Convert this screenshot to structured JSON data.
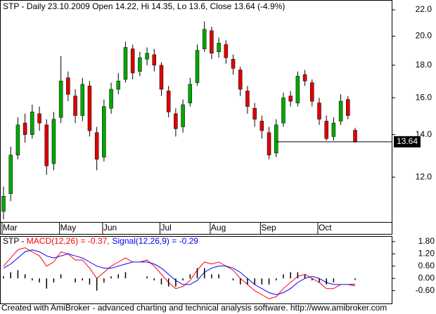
{
  "chart_data": [
    {
      "type": "candlestick",
      "title": "STP - Daily 23.10.2009 Open 14.22, Hi 14.35, Lo 13.6, Close 13.64 (-4.9%)",
      "categories": [
        "Mar",
        null,
        null,
        null,
        null,
        null,
        null,
        null,
        "May",
        null,
        null,
        null,
        null,
        null,
        "Jun",
        null,
        null,
        null,
        null,
        null,
        null,
        null,
        "Jul",
        null,
        null,
        null,
        null,
        null,
        null,
        "Aug",
        null,
        null,
        null,
        null,
        null,
        null,
        "Sep",
        null,
        null,
        null,
        null,
        null,
        null,
        null,
        "Oct",
        null,
        null,
        null,
        null,
        null
      ],
      "open": [
        10.6,
        11.3,
        13.0,
        14.6,
        14.0,
        15.1,
        14.5,
        12.6,
        14.9,
        17.2,
        16.1,
        15.0,
        16.7,
        14.1,
        12.9,
        15.4,
        16.5,
        17.1,
        19.1,
        17.6,
        18.4,
        18.7,
        18.0,
        16.4,
        15.1,
        14.4,
        15.7,
        16.9,
        19.1,
        20.4,
        18.9,
        19.4,
        18.4,
        17.7,
        16.4,
        15.4,
        14.7,
        14.1,
        13.1,
        14.6,
        16.1,
        15.7,
        17.4,
        16.9,
        15.7,
        14.7,
        13.9,
        14.7,
        15.9,
        14.22
      ],
      "high": [
        11.6,
        13.4,
        14.9,
        15.1,
        15.6,
        15.5,
        14.8,
        15.2,
        18.6,
        17.6,
        16.5,
        17.2,
        17.0,
        14.4,
        15.9,
        16.9,
        17.5,
        19.6,
        19.4,
        18.9,
        19.2,
        19.1,
        18.2,
        16.7,
        15.4,
        15.9,
        17.2,
        19.4,
        21.1,
        20.7,
        19.9,
        19.7,
        18.7,
        17.9,
        16.7,
        15.7,
        15.0,
        14.4,
        14.8,
        16.3,
        16.4,
        17.6,
        17.7,
        17.1,
        16.0,
        15.0,
        14.9,
        16.2,
        16.1,
        14.35
      ],
      "low": [
        10.3,
        11.0,
        12.8,
        13.6,
        13.8,
        14.2,
        12.1,
        12.3,
        14.6,
        15.8,
        14.6,
        14.7,
        13.9,
        12.3,
        12.7,
        15.1,
        16.2,
        16.9,
        17.1,
        17.3,
        18.0,
        17.6,
        16.1,
        14.9,
        13.9,
        14.1,
        15.5,
        16.7,
        18.9,
        18.4,
        18.5,
        18.1,
        17.4,
        16.1,
        15.1,
        14.4,
        13.8,
        12.8,
        12.9,
        14.4,
        15.5,
        15.5,
        16.7,
        15.5,
        14.5,
        13.7,
        13.7,
        14.5,
        14.8,
        13.6
      ],
      "close": [
        11.2,
        13.0,
        14.5,
        14.0,
        15.2,
        14.6,
        12.5,
        14.8,
        17.0,
        16.2,
        15.0,
        16.8,
        14.2,
        12.8,
        15.5,
        16.5,
        17.0,
        19.2,
        17.5,
        18.5,
        18.8,
        18.0,
        16.5,
        15.2,
        14.3,
        15.6,
        16.8,
        19.0,
        20.5,
        18.8,
        19.5,
        18.5,
        17.8,
        16.5,
        15.5,
        14.8,
        14.2,
        13.0,
        14.5,
        16.0,
        15.8,
        17.3,
        17.0,
        15.8,
        14.8,
        13.8,
        14.6,
        15.8,
        15.0,
        13.64
      ],
      "up_color": "#00a800",
      "down_color": "#e00000",
      "ylim": [
        10.2,
        22.8
      ],
      "log_scale": true,
      "last_price_line": true,
      "yticks": [
        {
          "value": 12,
          "label": "12.0"
        },
        {
          "value": 14,
          "label": "14.0"
        },
        {
          "value": 16,
          "label": "16.0"
        },
        {
          "value": 18,
          "label": "18.0"
        },
        {
          "value": 20,
          "label": "20.0"
        },
        {
          "value": 22,
          "label": "22.0"
        }
      ]
    },
    {
      "type": "macd",
      "prefix": "STP - ",
      "series": [
        {
          "name": "MACD(12,26) = -0.37,",
          "color": "#ff0000",
          "kind": "line",
          "values": [
            0.6,
            1.0,
            1.4,
            1.5,
            1.3,
            1.1,
            0.6,
            0.8,
            1.3,
            1.2,
            0.9,
            0.9,
            0.5,
            0.0,
            0.3,
            0.6,
            0.8,
            1.0,
            0.8,
            0.8,
            0.9,
            0.6,
            0.2,
            -0.2,
            -0.5,
            -0.4,
            -0.1,
            0.4,
            0.8,
            0.7,
            0.8,
            0.6,
            0.4,
            0.0,
            -0.3,
            -0.6,
            -0.8,
            -1.0,
            -0.9,
            -0.5,
            -0.2,
            0.1,
            0.2,
            0.0,
            -0.2,
            -0.5,
            -0.5,
            -0.3,
            -0.3,
            -0.37
          ]
        },
        {
          "name": "Signal(12,26,9) = -0.29",
          "color": "#0000ff",
          "kind": "line",
          "values": [
            0.5,
            0.7,
            1.0,
            1.3,
            1.4,
            1.3,
            1.1,
            1.0,
            1.1,
            1.2,
            1.1,
            1.0,
            0.8,
            0.6,
            0.5,
            0.5,
            0.6,
            0.7,
            0.8,
            0.8,
            0.8,
            0.7,
            0.5,
            0.2,
            -0.1,
            -0.3,
            -0.3,
            -0.1,
            0.3,
            0.5,
            0.6,
            0.6,
            0.5,
            0.3,
            0.0,
            -0.3,
            -0.5,
            -0.7,
            -0.8,
            -0.7,
            -0.5,
            -0.2,
            0.0,
            0.1,
            0.0,
            -0.2,
            -0.3,
            -0.3,
            -0.3,
            -0.29
          ]
        },
        {
          "color": "#000000",
          "kind": "bar",
          "values": [
            0.1,
            0.3,
            0.4,
            0.2,
            -0.1,
            -0.2,
            -0.5,
            -0.2,
            0.2,
            0.0,
            -0.2,
            -0.1,
            -0.3,
            -0.6,
            -0.2,
            0.1,
            0.2,
            0.3,
            0.0,
            0.0,
            0.1,
            -0.1,
            -0.3,
            -0.4,
            -0.4,
            -0.1,
            0.2,
            0.5,
            0.5,
            0.2,
            0.2,
            0.0,
            -0.1,
            -0.3,
            -0.3,
            -0.3,
            -0.3,
            -0.3,
            -0.1,
            0.2,
            0.3,
            0.3,
            0.2,
            -0.1,
            -0.2,
            -0.3,
            -0.2,
            0.0,
            0.0,
            -0.08
          ]
        }
      ],
      "ylim": [
        -1.23,
        2.04
      ],
      "yticks": [
        {
          "value": -0.6,
          "label": "-0.60"
        },
        {
          "value": 0,
          "label": "0.00"
        },
        {
          "value": 0.6,
          "label": "0.60"
        },
        {
          "value": 1.2,
          "label": "1.20"
        },
        {
          "value": 1.8,
          "label": "1.80"
        }
      ]
    }
  ],
  "footer": "Created with AmiBroker - advanced charting and technical analysis software. http://www.amibroker.com"
}
